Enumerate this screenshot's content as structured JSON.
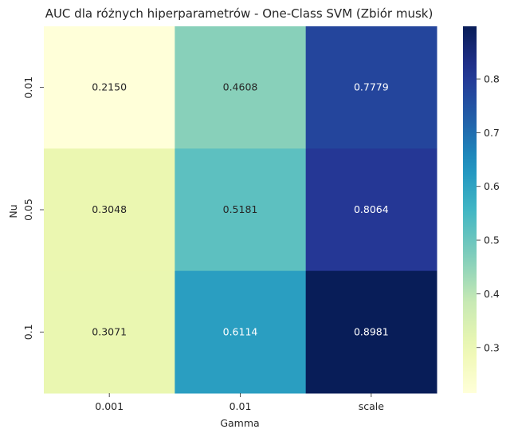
{
  "chart_data": {
    "type": "heatmap",
    "title": "AUC dla różnych hiperparametrów - One-Class SVM (Zbiór musk)",
    "xlabel": "Gamma",
    "ylabel": "Nu",
    "x_categories": [
      "0.001",
      "0.01",
      "scale"
    ],
    "y_categories": [
      "0.01",
      "0.05",
      "0.1"
    ],
    "values": [
      [
        0.215,
        0.4608,
        0.7779
      ],
      [
        0.3048,
        0.5181,
        0.8064
      ],
      [
        0.3071,
        0.6114,
        0.8981
      ]
    ],
    "value_labels": [
      [
        "0.2150",
        "0.4608",
        "0.7779"
      ],
      [
        "0.3048",
        "0.5181",
        "0.8064"
      ],
      [
        "0.3071",
        "0.6114",
        "0.8981"
      ]
    ],
    "colormap": "YlGnBu",
    "vmin": 0.215,
    "vmax": 0.8981,
    "colorbar_ticks": [
      0.3,
      0.4,
      0.5,
      0.6,
      0.7,
      0.8
    ],
    "colorbar_tick_labels": [
      "0.3",
      "0.4",
      "0.5",
      "0.6",
      "0.7",
      "0.8"
    ]
  }
}
